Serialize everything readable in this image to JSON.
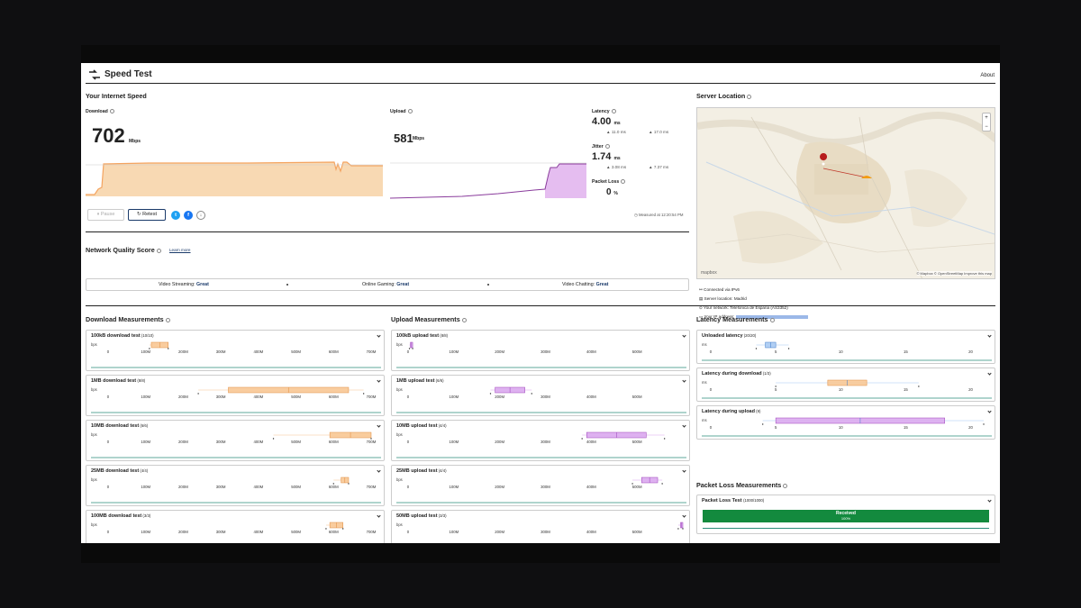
{
  "header": {
    "title": "Speed Test",
    "about": "About"
  },
  "speed": {
    "section_title": "Your Internet Speed",
    "download_label": "Download",
    "download_value": "702",
    "download_unit": "Mbps",
    "upload_label": "Upload",
    "upload_value": "581",
    "upload_unit": "Mbps",
    "latency_label": "Latency",
    "latency_value": "4.00",
    "latency_unit": "ms",
    "latency_down": "11.0 ms",
    "latency_up": "17.0 ms",
    "jitter_label": "Jitter",
    "jitter_value": "1.74",
    "jitter_unit": "ms",
    "jitter_down": "3.08 ms",
    "jitter_up": "7.37 ms",
    "packet_loss_label": "Packet Loss",
    "packet_loss_value": "0",
    "packet_loss_unit": "%",
    "measured_at": "Measured at 12:20:54 PM",
    "pause_label": "Pause",
    "retest_label": "Retest"
  },
  "quality": {
    "title": "Network Quality Score",
    "learn_more": "Learn more",
    "items": [
      {
        "label": "Video Streaming:",
        "value": "Great"
      },
      {
        "label": "Online Gaming:",
        "value": "Great"
      },
      {
        "label": "Video Chatting:",
        "value": "Great"
      }
    ]
  },
  "server": {
    "title": "Server Location",
    "attribution": "© Mapbox © OpenStreetMap Improve this map",
    "mapbox_logo": "mapbox",
    "connected_via": "Connected via IPv6",
    "server_location": "Server location: Madrid",
    "network": "Your network: Telefonica de Espana (AS3352)",
    "ip_label": "Your IP address:"
  },
  "download_measurements": {
    "title": "Download Measurements",
    "axis_unit": "bps",
    "ticks": [
      "0",
      "100M",
      "200M",
      "300M",
      "400M",
      "500M",
      "600M",
      "700M"
    ],
    "tests": [
      {
        "name": "100kB download test",
        "count": "(10/10)"
      },
      {
        "name": "1MB download test",
        "count": "(8/8)"
      },
      {
        "name": "10MB download test",
        "count": "(6/6)"
      },
      {
        "name": "25MB download test",
        "count": "(4/4)"
      },
      {
        "name": "100MB download test",
        "count": "(3/3)"
      }
    ]
  },
  "upload_measurements": {
    "title": "Upload Measurements",
    "axis_unit": "bps",
    "ticks": [
      "0",
      "100M",
      "200M",
      "300M",
      "400M",
      "500M"
    ],
    "tests": [
      {
        "name": "100kB upload test",
        "count": "(8/8)"
      },
      {
        "name": "1MB upload test",
        "count": "(6/6)"
      },
      {
        "name": "10MB upload test",
        "count": "(4/4)"
      },
      {
        "name": "25MB upload test",
        "count": "(4/4)"
      },
      {
        "name": "50MB upload test",
        "count": "(3/3)"
      }
    ]
  },
  "latency_measurements": {
    "title": "Latency Measurements",
    "axis_unit": "ms",
    "ticks": [
      "0",
      "5",
      "10",
      "15",
      "20"
    ],
    "tests": [
      {
        "name": "Unloaded latency",
        "count": "(20/20)"
      },
      {
        "name": "Latency during download",
        "count": "(1/3)"
      },
      {
        "name": "Latency during upload",
        "count": "(9)"
      }
    ]
  },
  "packet_loss_measurements": {
    "title": "Packet Loss Measurements",
    "test_name": "Packet Loss Test",
    "test_count": "(1000/1000)",
    "bar_label": "Received",
    "bar_percent": "100%"
  },
  "colors": {
    "download": "#f4a460",
    "upload": "#c06fd8",
    "latency": "#4a8fdc",
    "received": "#138a3e",
    "axis_line": "#2a8c7a"
  },
  "boxplots": {
    "download": [
      {
        "q1": 115,
        "q3": 160,
        "min": 110,
        "max": 160
      },
      {
        "q1": 320,
        "q3": 640,
        "min": 240,
        "max": 680
      },
      {
        "q1": 590,
        "q3": 700,
        "min": 440,
        "max": 700
      },
      {
        "q1": 620,
        "q3": 640,
        "min": 600,
        "max": 640
      },
      {
        "q1": 590,
        "q3": 625,
        "min": 580,
        "max": 625
      }
    ],
    "upload": [
      {
        "q1": 5,
        "q3": 10,
        "min": 3,
        "max": 10
      },
      {
        "q1": 190,
        "q3": 255,
        "min": 180,
        "max": 270
      },
      {
        "q1": 390,
        "q3": 520,
        "min": 380,
        "max": 560
      },
      {
        "q1": 510,
        "q3": 545,
        "min": 490,
        "max": 555
      },
      {
        "q1": 595,
        "q3": 600,
        "min": 590,
        "max": 600
      }
    ],
    "latency": [
      {
        "q1": 4.2,
        "q3": 5.0,
        "min": 3.5,
        "max": 6.0
      },
      {
        "q1": 9.0,
        "q3": 12.0,
        "min": 5.0,
        "max": 16.0
      },
      {
        "q1": 5.0,
        "q3": 18.0,
        "min": 4.0,
        "max": 21.0
      }
    ]
  }
}
